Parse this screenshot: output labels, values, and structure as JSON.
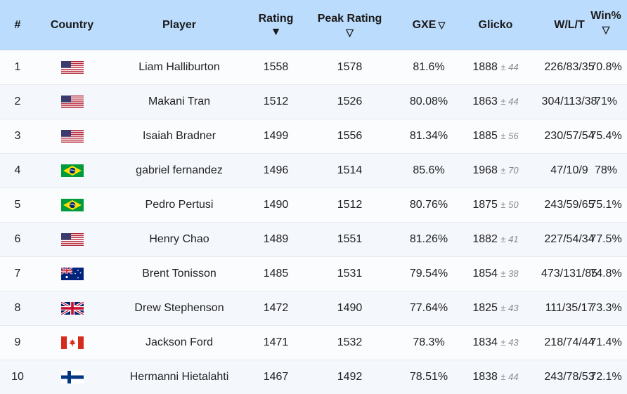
{
  "headers": {
    "rank": "#",
    "country": "Country",
    "player": "Player",
    "rating": "Rating",
    "rating_sort": "▼",
    "peak": "Peak Rating",
    "peak_sort": "▽",
    "gxe": "GXE",
    "gxe_sort": "▽",
    "glicko": "Glicko",
    "wlt": "W/L/T",
    "winpct": "Win%",
    "winpct_sort": "▽"
  },
  "rows": [
    {
      "rank": "1",
      "flag": "us-flag-icon",
      "player": "Liam Halliburton",
      "rating": "1558",
      "peak": "1578",
      "gxe": "81.6%",
      "glicko": "1888",
      "dev": "± 44",
      "wlt": "226/83/35",
      "winpct": "70.8%"
    },
    {
      "rank": "2",
      "flag": "us-flag-icon",
      "player": "Makani Tran",
      "rating": "1512",
      "peak": "1526",
      "gxe": "80.08%",
      "glicko": "1863",
      "dev": "± 44",
      "wlt": "304/113/38",
      "winpct": "71%"
    },
    {
      "rank": "3",
      "flag": "us-flag-icon",
      "player": "Isaiah Bradner",
      "rating": "1499",
      "peak": "1556",
      "gxe": "81.34%",
      "glicko": "1885",
      "dev": "± 56",
      "wlt": "230/57/54",
      "winpct": "75.4%"
    },
    {
      "rank": "4",
      "flag": "brazil-flag-icon",
      "player": "gabriel fernandez",
      "rating": "1496",
      "peak": "1514",
      "gxe": "85.6%",
      "glicko": "1968",
      "dev": "± 70",
      "wlt": "47/10/9",
      "winpct": "78%"
    },
    {
      "rank": "5",
      "flag": "brazil-flag-icon",
      "player": "Pedro Pertusi",
      "rating": "1490",
      "peak": "1512",
      "gxe": "80.76%",
      "glicko": "1875",
      "dev": "± 50",
      "wlt": "243/59/65",
      "winpct": "75.1%"
    },
    {
      "rank": "6",
      "flag": "us-flag-icon",
      "player": "Henry Chao",
      "rating": "1489",
      "peak": "1551",
      "gxe": "81.26%",
      "glicko": "1882",
      "dev": "± 41",
      "wlt": "227/54/34",
      "winpct": "77.5%"
    },
    {
      "rank": "7",
      "flag": "australia-flag-icon",
      "player": "Brent Tonisson",
      "rating": "1485",
      "peak": "1531",
      "gxe": "79.54%",
      "glicko": "1854",
      "dev": "± 38",
      "wlt": "473/131/85",
      "winpct": "74.8%"
    },
    {
      "rank": "8",
      "flag": "uk-flag-icon",
      "player": "Drew Stephenson",
      "rating": "1472",
      "peak": "1490",
      "gxe": "77.64%",
      "glicko": "1825",
      "dev": "± 43",
      "wlt": "111/35/17",
      "winpct": "73.3%"
    },
    {
      "rank": "9",
      "flag": "canada-flag-icon",
      "player": "Jackson Ford",
      "rating": "1471",
      "peak": "1532",
      "gxe": "78.3%",
      "glicko": "1834",
      "dev": "± 43",
      "wlt": "218/74/44",
      "winpct": "71.4%"
    },
    {
      "rank": "10",
      "flag": "finland-flag-icon",
      "player": "Hermanni Hietalahti",
      "rating": "1467",
      "peak": "1492",
      "gxe": "78.51%",
      "glicko": "1838",
      "dev": "± 44",
      "wlt": "243/78/53",
      "winpct": "72.1%"
    }
  ]
}
